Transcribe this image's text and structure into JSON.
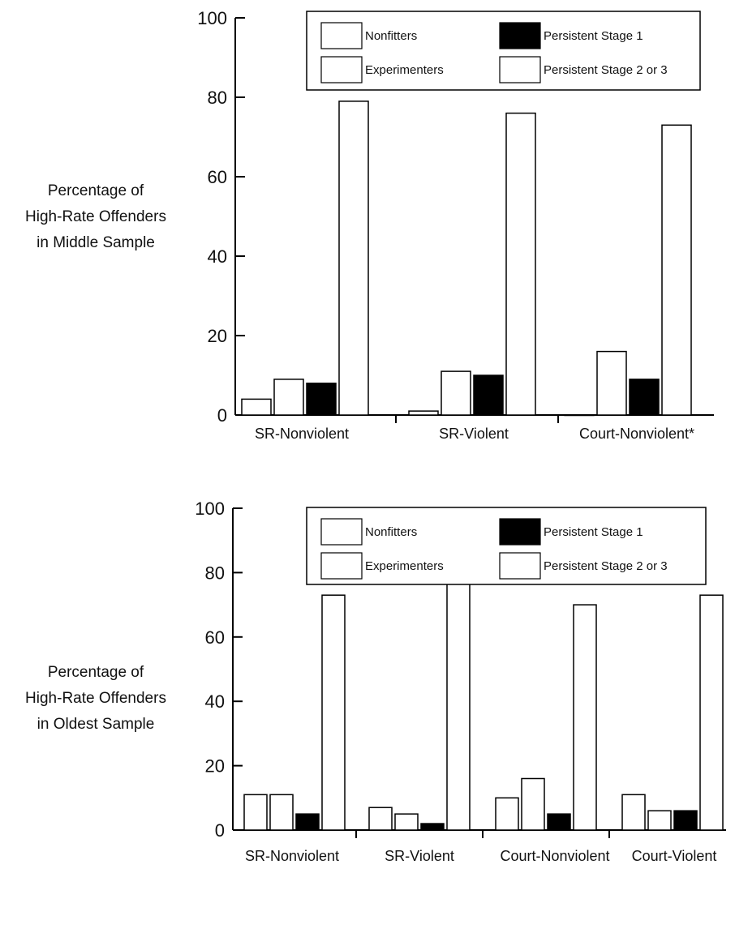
{
  "chart_data": [
    {
      "type": "bar",
      "ylabel_lines": [
        "Percentage of",
        "High-Rate Offenders",
        "in Middle Sample"
      ],
      "ylim": [
        0,
        100
      ],
      "yticks": [
        0,
        20,
        40,
        60,
        80,
        100
      ],
      "categories": [
        "SR-Nonviolent",
        "SR-Violent",
        "Court-Nonviolent*"
      ],
      "series": [
        {
          "name": "Nonfitters",
          "color": "#ffffff",
          "values": [
            4,
            1,
            0
          ]
        },
        {
          "name": "Experimenters",
          "color": "#ffffff",
          "values": [
            9,
            11,
            16
          ]
        },
        {
          "name": "Persistent Stage 1",
          "color": "#000000",
          "values": [
            8,
            10,
            9
          ]
        },
        {
          "name": "Persistent Stage 2 or 3",
          "color": "#ffffff",
          "values": [
            79,
            76,
            73
          ]
        }
      ],
      "legend": "top-right",
      "grid": false
    },
    {
      "type": "bar",
      "ylabel_lines": [
        "Percentage of",
        "High-Rate Offenders",
        "in Oldest Sample"
      ],
      "ylim": [
        0,
        100
      ],
      "yticks": [
        0,
        20,
        40,
        60,
        80,
        100
      ],
      "categories": [
        "SR-Nonviolent",
        "SR-Violent",
        "Court-Nonviolent",
        "Court-Violent"
      ],
      "series": [
        {
          "name": "Nonfitters",
          "color": "#ffffff",
          "values": [
            11,
            7,
            10,
            11
          ]
        },
        {
          "name": "Experimenters",
          "color": "#ffffff",
          "values": [
            11,
            5,
            16,
            6
          ]
        },
        {
          "name": "Persistent Stage 1",
          "color": "#000000",
          "values": [
            5,
            2,
            5,
            6
          ]
        },
        {
          "name": "Persistent Stage 2 or 3",
          "color": "#ffffff",
          "values": [
            73,
            80.5,
            70,
            73
          ]
        }
      ],
      "legend": "top-right",
      "grid": false
    }
  ]
}
